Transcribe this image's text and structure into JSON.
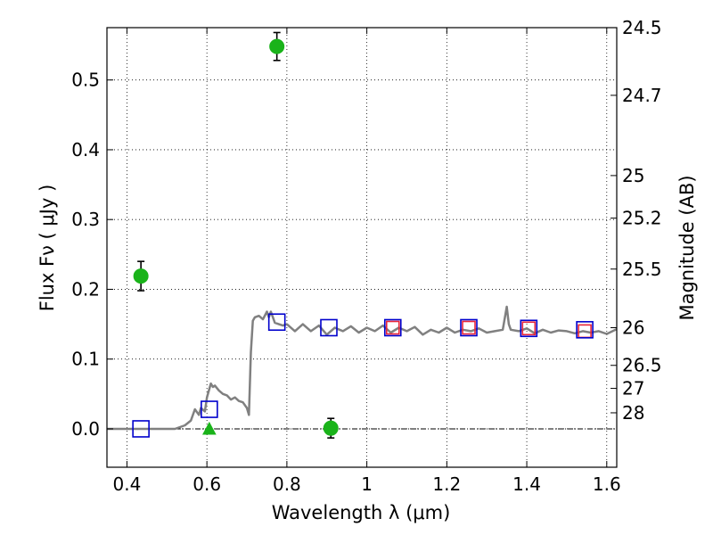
{
  "chart_data": {
    "type": "scatter",
    "xlabel": "Wavelength  λ (μm)",
    "ylabel": "Flux  Fν  ( μJy )",
    "ylabel_right": "Magnitude (AB)",
    "xlim": [
      0.35,
      1.625
    ],
    "ylim": [
      -0.055,
      0.575
    ],
    "grid": true,
    "x_ticks": [
      0.4,
      0.6,
      0.8,
      1.0,
      1.2,
      1.4,
      1.6
    ],
    "x_tick_labels": [
      "0.4",
      "0.6",
      "0.8",
      "1",
      "1.2",
      "1.4",
      "1.6"
    ],
    "y_ticks": [
      0.0,
      0.1,
      0.2,
      0.3,
      0.4,
      0.5
    ],
    "y_tick_labels": [
      "0.0",
      "0.1",
      "0.2",
      "0.3",
      "0.4",
      "0.5"
    ],
    "right_ticks": [
      {
        "label": "24.5",
        "flux": 0.575
      },
      {
        "label": "24.7",
        "flux": 0.478
      },
      {
        "label": "25",
        "flux": 0.363
      },
      {
        "label": "25.2",
        "flux": 0.302
      },
      {
        "label": "25.5",
        "flux": 0.229
      },
      {
        "label": "26",
        "flux": 0.145
      },
      {
        "label": "26.5",
        "flux": 0.091
      },
      {
        "label": "27",
        "flux": 0.058
      },
      {
        "label": "28",
        "flux": 0.023
      }
    ],
    "colors": {
      "observed": "#1ab31a",
      "model_blue": "#0000cc",
      "model_red": "#e8253a",
      "sed": "#808080"
    },
    "series": [
      {
        "marker": "circle-errorbar",
        "points": [
          {
            "x": 0.435,
            "y": 0.219,
            "err": 0.021
          },
          {
            "x": 0.775,
            "y": 0.548,
            "err": 0.02
          },
          {
            "x": 0.91,
            "y": 0.001,
            "err": 0.014
          }
        ]
      },
      {
        "marker": "upper-limit-triangle",
        "points": [
          {
            "x": 0.606,
            "y": 0.0
          }
        ]
      },
      {
        "marker": "open-square-blue",
        "points": [
          {
            "x": 0.435,
            "y": 0.0
          },
          {
            "x": 0.606,
            "y": 0.028
          },
          {
            "x": 0.775,
            "y": 0.153
          },
          {
            "x": 0.905,
            "y": 0.145
          },
          {
            "x": 1.065,
            "y": 0.145
          },
          {
            "x": 1.255,
            "y": 0.145
          },
          {
            "x": 1.405,
            "y": 0.144
          },
          {
            "x": 1.545,
            "y": 0.142
          }
        ]
      },
      {
        "marker": "open-square-red",
        "points": [
          {
            "x": 1.065,
            "y": 0.145
          },
          {
            "x": 1.255,
            "y": 0.145
          },
          {
            "x": 1.405,
            "y": 0.144
          },
          {
            "x": 1.545,
            "y": 0.14
          }
        ]
      },
      {
        "marker": "line",
        "x": [
          0.35,
          0.52,
          0.545,
          0.56,
          0.57,
          0.58,
          0.585,
          0.595,
          0.6,
          0.605,
          0.61,
          0.615,
          0.62,
          0.63,
          0.64,
          0.65,
          0.66,
          0.67,
          0.68,
          0.69,
          0.7,
          0.705,
          0.71,
          0.715,
          0.72,
          0.73,
          0.74,
          0.75,
          0.755,
          0.76,
          0.77,
          0.78,
          0.79,
          0.8,
          0.82,
          0.84,
          0.86,
          0.88,
          0.9,
          0.92,
          0.94,
          0.96,
          0.98,
          1.0,
          1.02,
          1.04,
          1.06,
          1.08,
          1.1,
          1.12,
          1.14,
          1.16,
          1.18,
          1.2,
          1.22,
          1.24,
          1.26,
          1.28,
          1.3,
          1.32,
          1.34,
          1.35,
          1.355,
          1.36,
          1.38,
          1.4,
          1.42,
          1.44,
          1.46,
          1.48,
          1.5,
          1.52,
          1.54,
          1.56,
          1.58,
          1.6,
          1.625
        ],
        "y": [
          0.0,
          0.0,
          0.005,
          0.012,
          0.028,
          0.02,
          0.03,
          0.025,
          0.045,
          0.055,
          0.065,
          0.06,
          0.062,
          0.055,
          0.05,
          0.048,
          0.042,
          0.045,
          0.04,
          0.038,
          0.03,
          0.02,
          0.11,
          0.155,
          0.16,
          0.162,
          0.157,
          0.168,
          0.16,
          0.168,
          0.152,
          0.15,
          0.148,
          0.15,
          0.14,
          0.15,
          0.14,
          0.148,
          0.135,
          0.145,
          0.14,
          0.147,
          0.138,
          0.145,
          0.14,
          0.148,
          0.138,
          0.145,
          0.14,
          0.146,
          0.135,
          0.142,
          0.138,
          0.145,
          0.138,
          0.142,
          0.14,
          0.144,
          0.138,
          0.14,
          0.142,
          0.175,
          0.15,
          0.142,
          0.14,
          0.144,
          0.137,
          0.142,
          0.138,
          0.141,
          0.14,
          0.137,
          0.14,
          0.138,
          0.14,
          0.136,
          0.143
        ]
      }
    ]
  }
}
